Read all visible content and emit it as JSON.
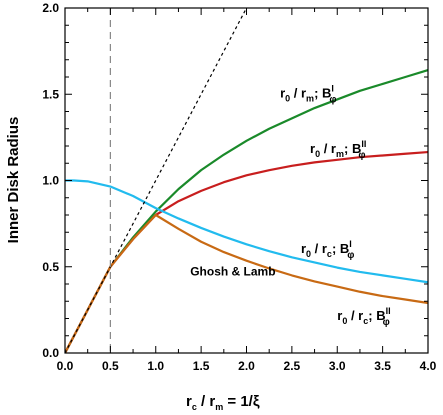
{
  "chart_data": {
    "type": "line",
    "title": "",
    "xlim": [
      0,
      4
    ],
    "ylim": [
      0,
      2
    ],
    "xticks": [
      0,
      0.5,
      1,
      1.5,
      2,
      2.5,
      3,
      3.5,
      4
    ],
    "xtick_labels": [
      "0.0",
      "0.5",
      "1.0",
      "1.5",
      "2.0",
      "2.5",
      "3.0",
      "3.5",
      "4.0"
    ],
    "yticks": [
      0,
      0.5,
      1,
      1.5,
      2
    ],
    "ytick_labels": [
      "0.0",
      "0.5",
      "1.0",
      "1.5",
      "2.0"
    ],
    "ylabel": "Inner Disk Radius",
    "xlabel": {
      "r1": "r",
      "s1": "c",
      "slash": " / ",
      "r2": "r",
      "s2": "m",
      "rest": "  =  1/ξ"
    },
    "grid": false,
    "annotation": {
      "text": "Ghosh & Lamb",
      "x": 1.85,
      "y": 0.45
    },
    "vertical_line_x": 0.5,
    "series": [
      {
        "key": "green",
        "color": "#1a8a2a",
        "label": {
          "a": "r",
          "b": "0",
          "c": " / r",
          "d": "m",
          "e": ";  B",
          "f": "I",
          "g": "φ"
        },
        "label_pos": {
          "x": 2.37,
          "y": 1.48
        },
        "x": [
          0,
          0.25,
          0.5,
          0.75,
          1.0,
          1.25,
          1.5,
          1.75,
          2.0,
          2.25,
          2.5,
          2.75,
          3.0,
          3.25,
          3.5,
          3.75,
          4.0
        ],
        "y": [
          0,
          0.25,
          0.5,
          0.67,
          0.82,
          0.95,
          1.06,
          1.15,
          1.23,
          1.3,
          1.36,
          1.42,
          1.47,
          1.52,
          1.56,
          1.6,
          1.64
        ]
      },
      {
        "key": "red",
        "color": "#c81e1e",
        "label": {
          "a": "r",
          "b": "0",
          "c": " / r",
          "d": "m",
          "e": ";  B",
          "f": "II",
          "g": "φ"
        },
        "label_pos": {
          "x": 2.7,
          "y": 1.16
        },
        "x": [
          0,
          0.25,
          0.5,
          0.75,
          1.0,
          1.25,
          1.5,
          1.75,
          2.0,
          2.25,
          2.5,
          2.75,
          3.0,
          3.25,
          3.5,
          3.75,
          4.0
        ],
        "y": [
          0,
          0.25,
          0.5,
          0.66,
          0.8,
          0.88,
          0.94,
          0.99,
          1.03,
          1.06,
          1.085,
          1.105,
          1.12,
          1.135,
          1.145,
          1.155,
          1.165
        ]
      },
      {
        "key": "cyan",
        "color": "#22bbee",
        "label": {
          "a": "r",
          "b": "0",
          "c": " / r",
          "d": "c",
          "e": ";  B",
          "f": "I",
          "g": "φ"
        },
        "label_pos": {
          "x": 2.6,
          "y": 0.58
        },
        "x": [
          0,
          0.1,
          0.25,
          0.5,
          0.75,
          1.0,
          1.25,
          1.5,
          1.75,
          2.0,
          2.25,
          2.5,
          2.75,
          3.0,
          3.25,
          3.5,
          3.75,
          4.0
        ],
        "y": [
          1.0,
          1.0,
          0.995,
          0.965,
          0.91,
          0.84,
          0.78,
          0.725,
          0.675,
          0.63,
          0.59,
          0.555,
          0.525,
          0.495,
          0.47,
          0.45,
          0.43,
          0.41
        ]
      },
      {
        "key": "orange",
        "color": "#c86a14",
        "label": {
          "a": "r",
          "b": "0",
          "c": " / r",
          "d": "c",
          "e": ";  B",
          "f": "II",
          "g": "φ"
        },
        "label_pos": {
          "x": 3.0,
          "y": 0.19
        },
        "x": [
          0,
          0.25,
          0.5,
          0.75,
          1.0,
          1.25,
          1.5,
          1.75,
          2.0,
          2.25,
          2.5,
          2.75,
          3.0,
          3.25,
          3.5,
          3.75,
          4.0
        ],
        "y": [
          0,
          0.25,
          0.5,
          0.66,
          0.8,
          0.72,
          0.645,
          0.585,
          0.535,
          0.49,
          0.45,
          0.415,
          0.385,
          0.355,
          0.33,
          0.31,
          0.29
        ]
      },
      {
        "key": "diagonal",
        "color": "#000000",
        "style": "dotted",
        "x": [
          0,
          2.0
        ],
        "y": [
          0,
          2.0
        ]
      }
    ]
  }
}
